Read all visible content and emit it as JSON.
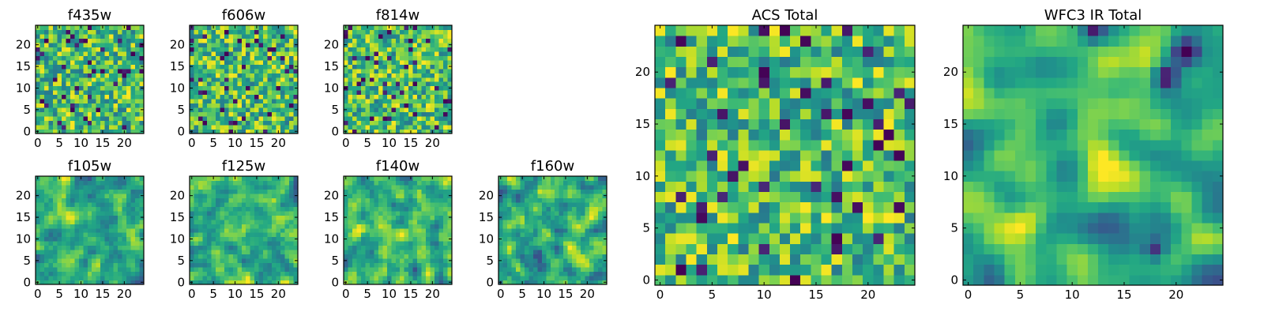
{
  "figure": {
    "background": "#ffffff",
    "colormap": "viridis"
  },
  "chart_data": [
    {
      "id": "f435w",
      "type": "heatmap",
      "title": "f435w",
      "xlabel": "",
      "ylabel": "",
      "grid_size": 25,
      "xlim": [
        -0.5,
        24.5
      ],
      "ylim": [
        -0.5,
        24.5
      ],
      "xticks": [
        0,
        5,
        10,
        15,
        20
      ],
      "yticks": [
        0,
        5,
        10,
        15,
        20
      ],
      "texture": "pixel-noise",
      "smoothing": 0,
      "seed": 11
    },
    {
      "id": "f606w",
      "type": "heatmap",
      "title": "f606w",
      "xlabel": "",
      "ylabel": "",
      "grid_size": 25,
      "xlim": [
        -0.5,
        24.5
      ],
      "ylim": [
        -0.5,
        24.5
      ],
      "xticks": [
        0,
        5,
        10,
        15,
        20
      ],
      "yticks": [
        0,
        5,
        10,
        15,
        20
      ],
      "texture": "pixel-noise",
      "smoothing": 0,
      "seed": 23
    },
    {
      "id": "f814w",
      "type": "heatmap",
      "title": "f814w",
      "xlabel": "",
      "ylabel": "",
      "grid_size": 25,
      "xlim": [
        -0.5,
        24.5
      ],
      "ylim": [
        -0.5,
        24.5
      ],
      "xticks": [
        0,
        5,
        10,
        15,
        20
      ],
      "yticks": [
        0,
        5,
        10,
        15,
        20
      ],
      "texture": "pixel-noise",
      "smoothing": 0,
      "seed": 37
    },
    {
      "id": "f105w",
      "type": "heatmap",
      "title": "f105w",
      "xlabel": "",
      "ylabel": "",
      "grid_size": 25,
      "xlim": [
        -0.5,
        24.5
      ],
      "ylim": [
        -0.5,
        24.5
      ],
      "xticks": [
        0,
        5,
        10,
        15,
        20
      ],
      "yticks": [
        0,
        5,
        10,
        15,
        20
      ],
      "texture": "smooth-noise",
      "smoothing": 1,
      "seed": 41
    },
    {
      "id": "f125w",
      "type": "heatmap",
      "title": "f125w",
      "xlabel": "",
      "ylabel": "",
      "grid_size": 25,
      "xlim": [
        -0.5,
        24.5
      ],
      "ylim": [
        -0.5,
        24.5
      ],
      "xticks": [
        0,
        5,
        10,
        15,
        20
      ],
      "yticks": [
        0,
        5,
        10,
        15,
        20
      ],
      "texture": "smooth-noise",
      "smoothing": 1,
      "seed": 53
    },
    {
      "id": "f140w",
      "type": "heatmap",
      "title": "f140w",
      "xlabel": "",
      "ylabel": "",
      "grid_size": 25,
      "xlim": [
        -0.5,
        24.5
      ],
      "ylim": [
        -0.5,
        24.5
      ],
      "xticks": [
        0,
        5,
        10,
        15,
        20
      ],
      "yticks": [
        0,
        5,
        10,
        15,
        20
      ],
      "texture": "smooth-noise",
      "smoothing": 1,
      "seed": 67
    },
    {
      "id": "f160w",
      "type": "heatmap",
      "title": "f160w",
      "xlabel": "",
      "ylabel": "",
      "grid_size": 25,
      "xlim": [
        -0.5,
        24.5
      ],
      "ylim": [
        -0.5,
        24.5
      ],
      "xticks": [
        0,
        5,
        10,
        15,
        20
      ],
      "yticks": [
        0,
        5,
        10,
        15,
        20
      ],
      "texture": "smooth-noise",
      "smoothing": 1,
      "seed": 79
    },
    {
      "id": "acs-total",
      "type": "heatmap",
      "title": "ACS Total",
      "xlabel": "",
      "ylabel": "",
      "grid_size": 25,
      "xlim": [
        -0.5,
        24.5
      ],
      "ylim": [
        -0.5,
        24.5
      ],
      "xticks": [
        0,
        5,
        10,
        15,
        20
      ],
      "yticks": [
        0,
        5,
        10,
        15,
        20
      ],
      "texture": "pixel-noise",
      "smoothing": 0,
      "seed": 97
    },
    {
      "id": "wfc3-ir-total",
      "type": "heatmap",
      "title": "WFC3 IR Total",
      "xlabel": "",
      "ylabel": "",
      "grid_size": 25,
      "xlim": [
        -0.5,
        24.5
      ],
      "ylim": [
        -0.5,
        24.5
      ],
      "xticks": [
        0,
        5,
        10,
        15,
        20
      ],
      "yticks": [
        0,
        5,
        10,
        15,
        20
      ],
      "texture": "smooth-noise",
      "smoothing": 2,
      "seed": 131,
      "bright_region_center": [
        12.5,
        11
      ],
      "dark_spots": [
        [
          21,
          22
        ],
        [
          19,
          19.5
        ],
        [
          18,
          3
        ],
        [
          12,
          24
        ]
      ]
    }
  ]
}
